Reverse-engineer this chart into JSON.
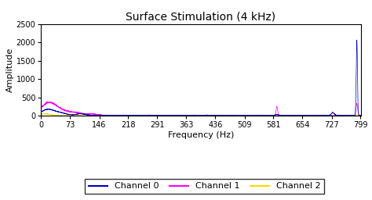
{
  "title": "Surface Stimulation (4 kHz)",
  "xlabel": "Frequency (Hz)",
  "ylabel": "Amplitude",
  "xlim": [
    0,
    800
  ],
  "ylim": [
    0,
    2500
  ],
  "xticks": [
    0,
    73,
    146,
    218,
    291,
    363,
    436,
    509,
    581,
    654,
    727,
    799
  ],
  "yticks": [
    0,
    500,
    1000,
    1500,
    2000,
    2500
  ],
  "channels": [
    {
      "name": "Channel 0",
      "color": "#0000BB"
    },
    {
      "name": "Channel 1",
      "color": "#FF00FF"
    },
    {
      "name": "Channel 2",
      "color": "#FFD700"
    }
  ],
  "background_color": "#ffffff",
  "title_fontsize": 10,
  "axis_fontsize": 8,
  "tick_fontsize": 7,
  "legend_fontsize": 8
}
